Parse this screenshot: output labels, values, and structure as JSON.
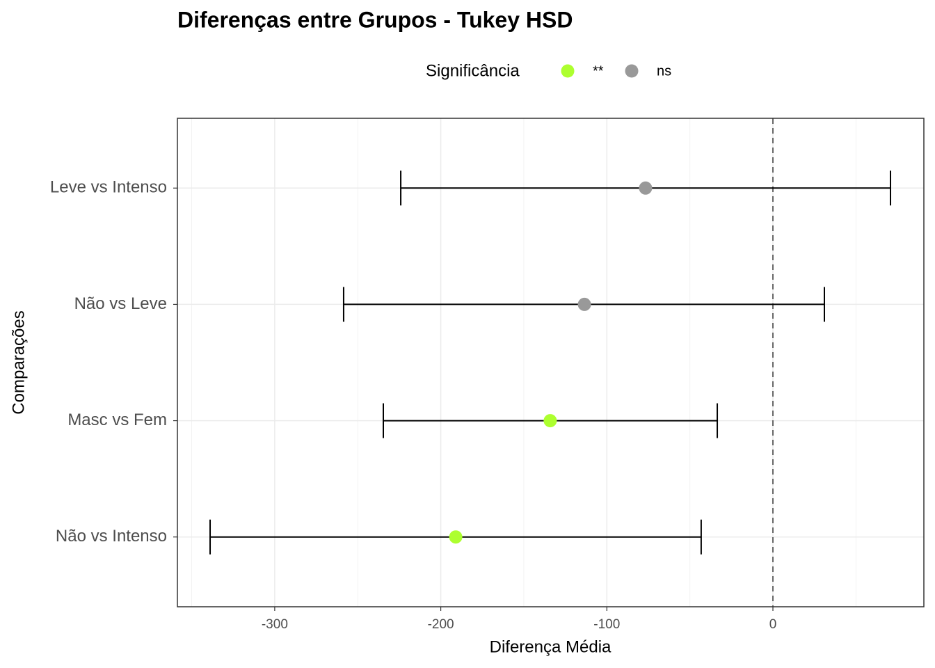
{
  "chart_data": {
    "type": "errorbar",
    "title": "Diferenças entre Grupos - Tukey HSD",
    "x_label": "Diferença Média",
    "y_label": "Comparações",
    "legend_title": "Significância",
    "legend_position": "top",
    "categories": [
      "Leve vs Intenso",
      "Não vs Leve",
      "Masc vs Fem",
      "Não vs Intenso"
    ],
    "series": [
      {
        "name": "**",
        "color": "#adff2f",
        "values": [
          null,
          null,
          -134.1,
          -191.0
        ],
        "lower": [
          null,
          null,
          -234.6,
          -338.9
        ],
        "upper": [
          null,
          null,
          -33.5,
          -43.2
        ]
      },
      {
        "name": "ns",
        "color": "#999999",
        "values": [
          -76.7,
          -113.5,
          null,
          null
        ],
        "lower": [
          -224.1,
          -258.5,
          null,
          null
        ],
        "upper": [
          70.8,
          31.0,
          null,
          null
        ]
      }
    ],
    "xlim": [
      -358.6,
      90.9
    ],
    "xticks": [
      -300,
      -200,
      -100,
      0
    ],
    "reference_line": 0,
    "grid": true
  }
}
